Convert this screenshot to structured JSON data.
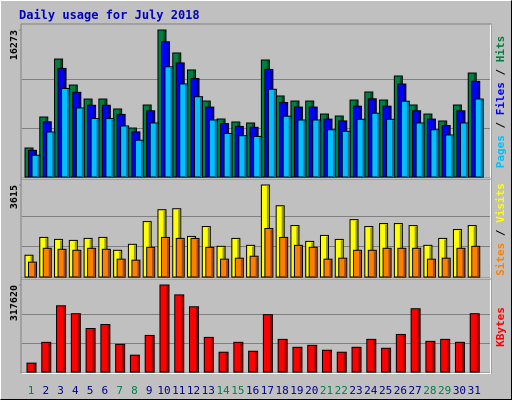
{
  "title": "Daily usage for July 2018",
  "legend_separator": " / ",
  "weekend_indices": [
    0,
    6,
    7,
    13,
    14,
    20,
    21,
    27,
    28
  ],
  "day_label_colors": {
    "weekday": "#00008b",
    "weekend": "#00804b"
  },
  "chart_data": [
    {
      "type": "bar",
      "ylim": [
        0,
        16273
      ],
      "yticks": [
        16273
      ],
      "gridlines": [
        5424,
        10849
      ],
      "series": [
        {
          "name": "Pages",
          "color": "#00c0ff",
          "values": [
            2410,
            4980,
            9800,
            7640,
            6470,
            6470,
            5650,
            4070,
            5980,
            12200,
            10300,
            8890,
            6310,
            4820,
            4570,
            4490,
            9710,
            6730,
            6310,
            6310,
            5230,
            5060,
            6390,
            7060,
            6390,
            8390,
            5980,
            5230,
            4650,
            5980,
            8630
          ]
        },
        {
          "name": "Files",
          "color": "#0000ff",
          "values": [
            2950,
            6110,
            12020,
            9370,
            7940,
            7940,
            6930,
            4990,
            7330,
            14970,
            12630,
            10900,
            7740,
            5910,
            5600,
            5500,
            11910,
            8250,
            7740,
            7740,
            6410,
            6210,
            7840,
            8660,
            7840,
            10290,
            7330,
            6410,
            5700,
            7330,
            10590
          ]
        },
        {
          "name": "Hits",
          "color": "#008040",
          "values": [
            3210,
            6640,
            13060,
            10180,
            8630,
            8630,
            7530,
            5420,
            7970,
            16273,
            13730,
            11850,
            8410,
            6420,
            6090,
            5980,
            12950,
            8970,
            8410,
            8410,
            6970,
            6750,
            8520,
            9410,
            8520,
            11180,
            7970,
            6970,
            6200,
            7970,
            11510
          ]
        }
      ]
    },
    {
      "type": "bar",
      "ylim": [
        0,
        3615
      ],
      "yticks": [
        3615
      ],
      "gridlines": [
        1205,
        2410
      ],
      "series": [
        {
          "name": "Sites",
          "color": "#ff8000",
          "values": [
            583,
            1127,
            1088,
            1049,
            1127,
            1088,
            700,
            661,
            1166,
            1555,
            1516,
            1516,
            1166,
            700,
            739,
            816,
            1905,
            1555,
            1244,
            1166,
            700,
            739,
            1049,
            1049,
            1127,
            1127,
            1127,
            700,
            739,
            1127,
            1205
          ]
        },
        {
          "name": "Visits",
          "color": "#ffff00",
          "values": [
            855,
            1555,
            1477,
            1438,
            1516,
            1555,
            1049,
            1283,
            2177,
            2643,
            2682,
            1594,
            1982,
            1205,
            1516,
            1244,
            3615,
            2799,
            2021,
            1399,
            1633,
            1477,
            2254,
            1982,
            2099,
            2099,
            2021,
            1244,
            1516,
            1866,
            2021
          ]
        }
      ]
    },
    {
      "type": "bar",
      "ylim": [
        0,
        317620
      ],
      "yticks": [
        317620
      ],
      "gridlines": [
        105873,
        211747
      ],
      "categories": [
        "1",
        "2",
        "3",
        "4",
        "5",
        "6",
        "7",
        "8",
        "9",
        "10",
        "11",
        "12",
        "13",
        "14",
        "15",
        "16",
        "17",
        "18",
        "19",
        "20",
        "21",
        "22",
        "23",
        "24",
        "25",
        "26",
        "27",
        "28",
        "29",
        "30",
        "31"
      ],
      "series": [
        {
          "name": "KBytes",
          "color": "#ff0000",
          "values": [
            32480,
            108270,
            241800,
            212900,
            158800,
            173200,
            101000,
            61400,
            133500,
            317620,
            281500,
            238200,
            126300,
            72200,
            108300,
            75800,
            209300,
            119100,
            90200,
            97400,
            79400,
            72200,
            90200,
            119100,
            86600,
            137100,
            231000,
            111900,
            119100,
            108300,
            212900
          ]
        }
      ]
    }
  ]
}
